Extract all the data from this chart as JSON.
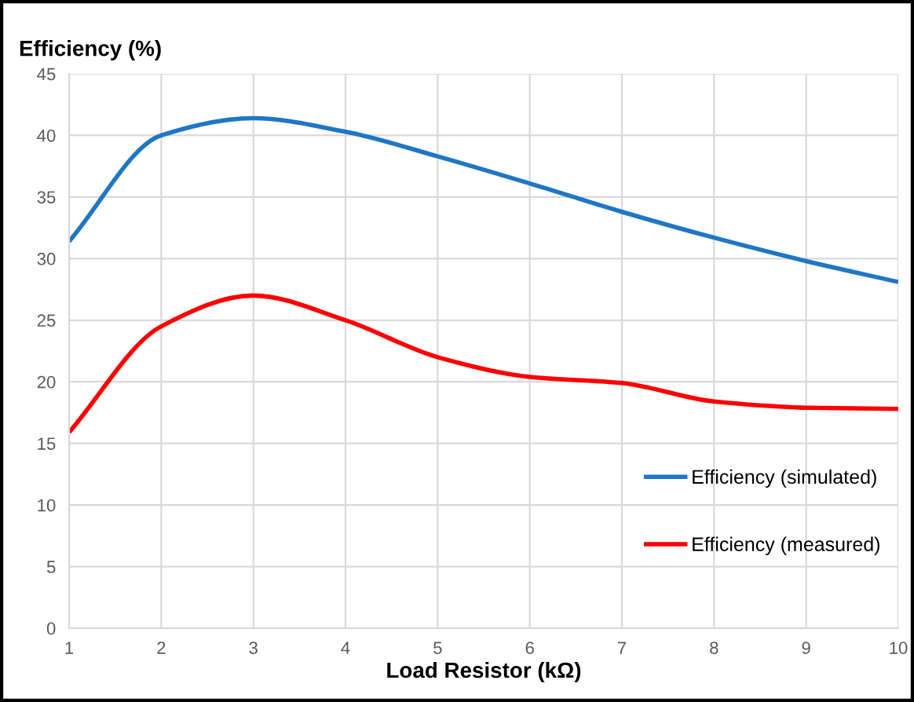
{
  "chart_data": {
    "type": "line",
    "xlabel": "Load Resistor (kΩ)",
    "ylabel": "Efficiency (%)",
    "x": [
      1,
      2,
      3,
      4,
      5,
      6,
      7,
      8,
      9,
      10
    ],
    "series": [
      {
        "name": "Efficiency (simulated)",
        "color": "#1f77c4",
        "values": [
          31.4,
          40,
          41.4,
          40.3,
          38.3,
          36.1,
          33.8,
          31.7,
          29.8,
          28.1
        ]
      },
      {
        "name": "Efficiency (measured)",
        "color": "#ff0000",
        "values": [
          15.9,
          24.5,
          27,
          25,
          22,
          20.4,
          19.9,
          18.4,
          17.9,
          17.8
        ]
      }
    ],
    "xlim": [
      1,
      10
    ],
    "xticks": [
      1,
      2,
      3,
      4,
      5,
      6,
      7,
      8,
      9,
      10
    ],
    "ylim": [
      0,
      45
    ],
    "yticks": [
      0,
      5,
      10,
      15,
      20,
      25,
      30,
      35,
      40,
      45
    ],
    "grid": true,
    "legend": "bottom right",
    "marker": "none",
    "line_style": "solid"
  }
}
